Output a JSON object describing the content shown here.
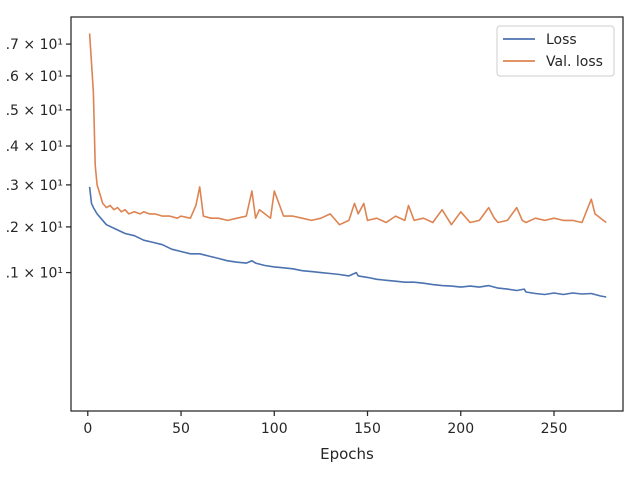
{
  "chart_data": {
    "type": "line",
    "title": "",
    "xlabel": "Epochs",
    "ylabel": "",
    "y_scale": "log",
    "xlim": [
      -9,
      287
    ],
    "ylim": [
      8.45,
      17.9
    ],
    "grid": false,
    "legend_placement": "top-right",
    "x_ticks": [
      0,
      50,
      100,
      150,
      200,
      250
    ],
    "x_tick_labels": [
      "0",
      "50",
      "100",
      "150",
      "200",
      "250"
    ],
    "y_ticks": [
      11,
      12,
      13,
      14,
      15,
      16,
      17
    ],
    "y_tick_labels": [
      ".1 × 10¹",
      ".2 × 10¹",
      ".3 × 10¹",
      ".4 × 10¹",
      ".5 × 10¹",
      ".6 × 10¹",
      ".7 × 10¹"
    ],
    "series": [
      {
        "name": "Loss",
        "color": "#4c72b0",
        "x": [
          1,
          2,
          3,
          5,
          7,
          10,
          15,
          20,
          25,
          30,
          35,
          40,
          45,
          50,
          55,
          60,
          65,
          70,
          75,
          80,
          85,
          88,
          90,
          95,
          100,
          105,
          110,
          115,
          120,
          125,
          130,
          135,
          140,
          144,
          145,
          150,
          155,
          160,
          165,
          170,
          175,
          180,
          185,
          190,
          195,
          200,
          205,
          210,
          215,
          220,
          225,
          230,
          234,
          235,
          240,
          245,
          250,
          255,
          260,
          265,
          270,
          275,
          278
        ],
        "values": [
          12.95,
          12.55,
          12.45,
          12.3,
          12.2,
          12.05,
          11.95,
          11.85,
          11.8,
          11.7,
          11.65,
          11.6,
          11.5,
          11.45,
          11.4,
          11.4,
          11.35,
          11.3,
          11.25,
          11.22,
          11.2,
          11.25,
          11.2,
          11.15,
          11.12,
          11.1,
          11.08,
          11.04,
          11.02,
          11.0,
          10.98,
          10.96,
          10.93,
          11.0,
          10.93,
          10.9,
          10.86,
          10.84,
          10.82,
          10.8,
          10.8,
          10.78,
          10.75,
          10.73,
          10.72,
          10.7,
          10.72,
          10.7,
          10.73,
          10.68,
          10.66,
          10.63,
          10.66,
          10.6,
          10.57,
          10.55,
          10.58,
          10.55,
          10.58,
          10.56,
          10.57,
          10.52,
          10.5
        ]
      },
      {
        "name": "Val. loss",
        "color": "#dd8452",
        "x": [
          1,
          2,
          3,
          4,
          5,
          6,
          8,
          10,
          12,
          14,
          16,
          18,
          20,
          22,
          25,
          28,
          30,
          33,
          36,
          40,
          44,
          48,
          50,
          55,
          58,
          60,
          62,
          66,
          70,
          75,
          80,
          85,
          88,
          90,
          92,
          95,
          98,
          100,
          105,
          110,
          115,
          120,
          125,
          130,
          135,
          140,
          143,
          145,
          148,
          150,
          155,
          160,
          165,
          170,
          172,
          175,
          180,
          185,
          190,
          195,
          200,
          205,
          210,
          215,
          218,
          220,
          225,
          230,
          233,
          235,
          240,
          245,
          250,
          255,
          260,
          265,
          270,
          272,
          275,
          278
        ],
        "values": [
          17.35,
          16.4,
          15.5,
          13.5,
          13.0,
          12.85,
          12.55,
          12.45,
          12.5,
          12.4,
          12.45,
          12.35,
          12.4,
          12.3,
          12.35,
          12.3,
          12.35,
          12.3,
          12.3,
          12.25,
          12.25,
          12.2,
          12.25,
          12.2,
          12.5,
          12.95,
          12.25,
          12.2,
          12.2,
          12.15,
          12.2,
          12.25,
          12.85,
          12.2,
          12.4,
          12.3,
          12.2,
          12.85,
          12.25,
          12.25,
          12.2,
          12.15,
          12.2,
          12.3,
          12.05,
          12.15,
          12.55,
          12.3,
          12.55,
          12.15,
          12.2,
          12.1,
          12.25,
          12.15,
          12.5,
          12.15,
          12.2,
          12.1,
          12.4,
          12.05,
          12.35,
          12.1,
          12.15,
          12.45,
          12.2,
          12.1,
          12.15,
          12.45,
          12.15,
          12.1,
          12.2,
          12.15,
          12.2,
          12.15,
          12.15,
          12.1,
          12.65,
          12.3,
          12.2,
          12.1
        ]
      }
    ]
  }
}
